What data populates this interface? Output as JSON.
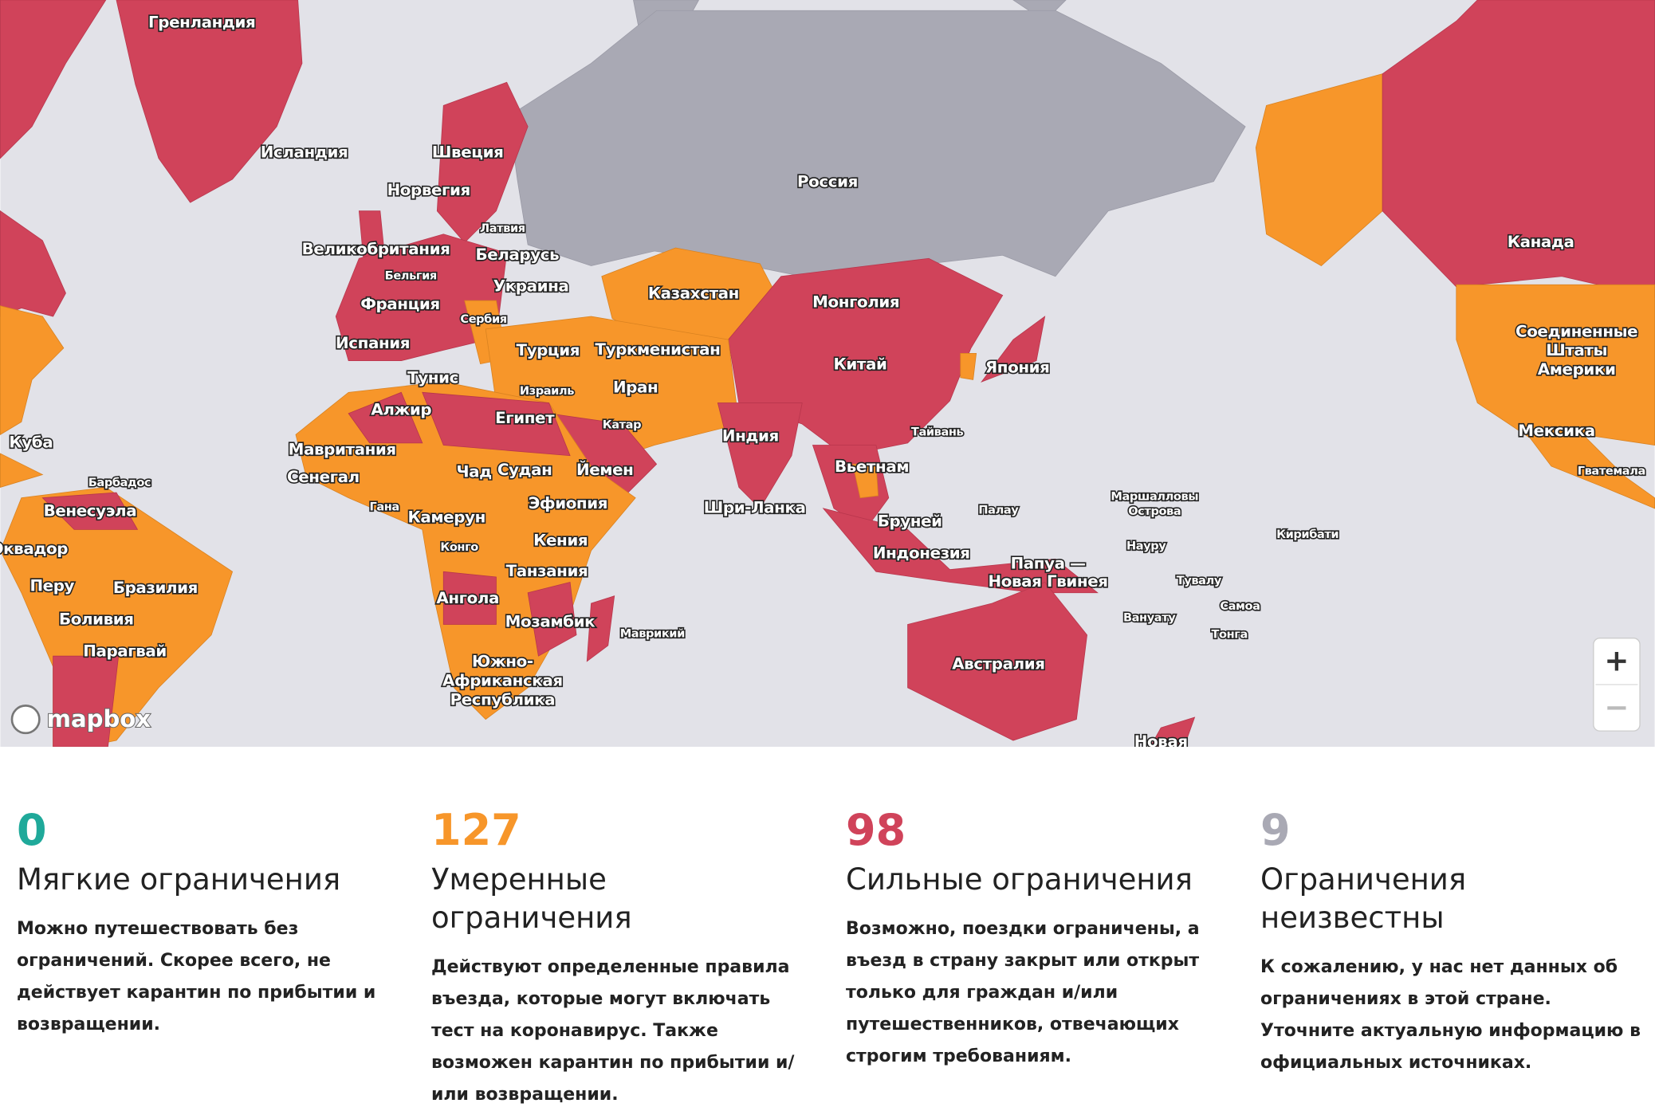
{
  "map": {
    "labels": [
      "Гренландия",
      "Исландия",
      "Швеция",
      "Норвегия",
      "Россия",
      "Латвия",
      "Великобритания",
      "Беларусь",
      "Бельгия",
      "Украина",
      "Казахстан",
      "Франция",
      "Монголия",
      "Сербия",
      "Испания",
      "Турция",
      "Туркменистан",
      "Канада",
      [
        "Соединенные",
        "Штаты",
        "Америки"
      ],
      "Китай",
      "Япония",
      "Тунис",
      "Иран",
      "Израиль",
      "Алжир",
      "Египет",
      "Катар",
      "Индия",
      "Тайвань",
      "Мексика",
      "Куба",
      "Мавритания",
      "Чад",
      "Судан",
      "Йемен",
      "Вьетнам",
      "Гватемала",
      "Сенегал",
      "Барбадос",
      [
        "Маршалловы",
        "Острова"
      ],
      "Палау",
      "Гана",
      "Эфиопия",
      "Шри-Ланка",
      "Венесуэла",
      "Камерун",
      "Бруней",
      "Кирибати",
      "Кения",
      "Эквадор",
      "Конго",
      "Науру",
      "Индонезия",
      [
        "Папуа —",
        "Новая Гвинея"
      ],
      "Танзания",
      "Тувалу",
      "Перу",
      "Бразилия",
      "Ангола",
      "Самоа",
      "Вануату",
      "Боливия",
      "Мозамбик",
      "Маврикий",
      "Тонга",
      "Парагвай",
      "Австралия",
      [
        "Южно-",
        "Африканская",
        "Республика"
      ],
      "Новая"
    ],
    "attribution": "mapbox",
    "zoom_in": "+",
    "zoom_out": "−"
  },
  "legend": {
    "items": [
      {
        "count": "0",
        "color": "#1fa99a",
        "title": "Мягкие ограничения",
        "description": "Можно путешествовать без ограничений. Скорее всего, не действует карантин по прибытии и возвращении."
      },
      {
        "count": "127",
        "color": "#f7962a",
        "title": "Умеренные ограничения",
        "description": "Действуют определенные правила въезда, которые могут включать тест на коронавирус. Также возможен карантин по прибытии и/или возвращении."
      },
      {
        "count": "98",
        "color": "#d0435a",
        "title": "Сильные ограничения",
        "description": "Возможно, поездки ограничены, а въезд в страну закрыт или открыт только для граждан и/или путешественников, отвечающих строгим требованиям."
      },
      {
        "count": "9",
        "color": "#a9a9b4",
        "title": "Ограничения неизвестны",
        "description": "К сожалению, у нас нет данных об ограничениях в этой стране. Уточните актуальную информацию в официальных источниках."
      }
    ]
  }
}
